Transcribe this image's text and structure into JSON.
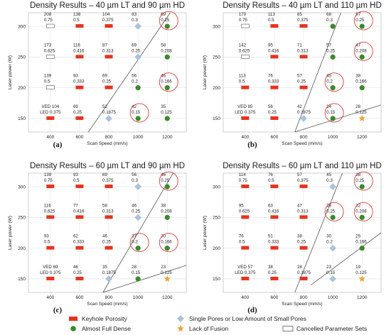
{
  "figure_id": "",
  "legend": [
    {
      "key": "keyhole",
      "label": "Keyhole Porosity",
      "color": "#e8321e"
    },
    {
      "key": "dense",
      "label": "Almost Full Dense",
      "color": "#3a8a2a"
    },
    {
      "key": "single",
      "label": "Single Pores or Low Amount of Small Pores",
      "color": "#a9c4e0"
    },
    {
      "key": "fusion",
      "label": "Lack of Fusion",
      "color": "#f0a030"
    },
    {
      "key": "cancelled",
      "label": "Cancelled Parameter Sets",
      "color": "#ffffff"
    }
  ],
  "chart_data": [
    {
      "type": "scatter",
      "tag": "(a)",
      "title": "Density Results – 40 µm LT and 90 µm HD",
      "xlabel": "Scan Speed (mm/s)",
      "ylabel": "Laser power (W)",
      "x_ticks": [
        400,
        600,
        800,
        1000,
        1200
      ],
      "y_ticks": [
        150,
        200,
        250,
        300
      ],
      "xlim": [
        250,
        1330
      ],
      "ylim": [
        128,
        322
      ],
      "key_note": {
        "line1": "VED",
        "line2": "LED"
      },
      "points": [
        {
          "x": 400,
          "y": 300,
          "ved": "208",
          "led": "0.75",
          "cls": "cancelled"
        },
        {
          "x": 600,
          "y": 300,
          "ved": "138",
          "led": "0.5",
          "cls": "keyhole"
        },
        {
          "x": 800,
          "y": 300,
          "ved": "104",
          "led": "0.375",
          "cls": "keyhole"
        },
        {
          "x": 1000,
          "y": 300,
          "ved": "83",
          "led": "0.3",
          "cls": "single"
        },
        {
          "x": 1200,
          "y": 300,
          "ved": "69",
          "led": "0.25",
          "cls": "dense",
          "circle": true
        },
        {
          "x": 400,
          "y": 250,
          "ved": "173",
          "led": "0.625",
          "cls": "cancelled"
        },
        {
          "x": 600,
          "y": 250,
          "ved": "116",
          "led": "0.416",
          "cls": "keyhole"
        },
        {
          "x": 800,
          "y": 250,
          "ved": "87",
          "led": "0.313",
          "cls": "keyhole"
        },
        {
          "x": 1000,
          "y": 250,
          "ved": "69",
          "led": "0.25",
          "cls": "single"
        },
        {
          "x": 1200,
          "y": 250,
          "ved": "58",
          "led": "0.208",
          "cls": "dense"
        },
        {
          "x": 400,
          "y": 200,
          "ved": "139",
          "led": "0.5",
          "cls": "cancelled"
        },
        {
          "x": 600,
          "y": 200,
          "ved": "93",
          "led": "0.333",
          "cls": "keyhole"
        },
        {
          "x": 800,
          "y": 200,
          "ved": "69",
          "led": "0.25",
          "cls": "keyhole"
        },
        {
          "x": 1000,
          "y": 200,
          "ved": "56",
          "led": "0.2",
          "cls": "dense"
        },
        {
          "x": 1200,
          "y": 200,
          "ved": "46",
          "led": "0.166",
          "cls": "dense",
          "circle": true
        },
        {
          "x": 400,
          "y": 150,
          "ved": "104",
          "led": "0.375",
          "cls": "keyhole",
          "key": true
        },
        {
          "x": 600,
          "y": 150,
          "ved": "69",
          "led": "0.25",
          "cls": "keyhole"
        },
        {
          "x": 800,
          "y": 150,
          "ved": "52",
          "led": "0.1875",
          "cls": "single"
        },
        {
          "x": 1000,
          "y": 150,
          "ved": "42",
          "led": "0.15",
          "cls": "dense",
          "circle": true
        },
        {
          "x": 1200,
          "y": 150,
          "ved": "35",
          "led": "0.125",
          "cls": "dense"
        }
      ],
      "lines": [
        {
          "x1": 660,
          "y1": 128,
          "x2": 1220,
          "y2": 322
        }
      ]
    },
    {
      "type": "scatter",
      "tag": "(b)",
      "title": "Density Results – 40 µm LT and 110 µm HD",
      "xlabel": "Scan Speed (mm/s)",
      "ylabel": "Laser power (W)",
      "x_ticks": [
        400,
        600,
        800,
        1000,
        1200
      ],
      "y_ticks": [
        150,
        200,
        250,
        300
      ],
      "xlim": [
        250,
        1330
      ],
      "ylim": [
        128,
        322
      ],
      "key_note": {
        "line1": "VED",
        "line2": "LED"
      },
      "points": [
        {
          "x": 400,
          "y": 300,
          "ved": "170",
          "led": "0.75",
          "cls": "cancelled"
        },
        {
          "x": 600,
          "y": 300,
          "ved": "113",
          "led": "0.5",
          "cls": "keyhole"
        },
        {
          "x": 800,
          "y": 300,
          "ved": "85",
          "led": "0.375",
          "cls": "keyhole"
        },
        {
          "x": 1000,
          "y": 300,
          "ved": "68",
          "led": "0.3",
          "cls": "dense"
        },
        {
          "x": 1200,
          "y": 300,
          "ved": "57",
          "led": "0.25",
          "cls": "dense",
          "circle": true
        },
        {
          "x": 400,
          "y": 250,
          "ved": "142",
          "led": "0.625",
          "cls": "cancelled"
        },
        {
          "x": 600,
          "y": 250,
          "ved": "95",
          "led": "0.416",
          "cls": "keyhole"
        },
        {
          "x": 800,
          "y": 250,
          "ved": "71",
          "led": "0.313",
          "cls": "keyhole"
        },
        {
          "x": 1000,
          "y": 250,
          "ved": "57",
          "led": "0.25",
          "cls": "dense"
        },
        {
          "x": 1200,
          "y": 250,
          "ved": "47",
          "led": "0.208",
          "cls": "dense",
          "circle": true
        },
        {
          "x": 400,
          "y": 200,
          "ved": "113",
          "led": "0.5",
          "cls": "keyhole"
        },
        {
          "x": 600,
          "y": 200,
          "ved": "76",
          "led": "0.333",
          "cls": "keyhole"
        },
        {
          "x": 800,
          "y": 200,
          "ved": "57",
          "led": "0.25",
          "cls": "keyhole"
        },
        {
          "x": 1000,
          "y": 200,
          "ved": "45",
          "led": "0.2",
          "cls": "dense",
          "circle": true
        },
        {
          "x": 1200,
          "y": 200,
          "ved": "38",
          "led": "0.166",
          "cls": "dense"
        },
        {
          "x": 400,
          "y": 150,
          "ved": "85",
          "led": "0.375",
          "cls": "keyhole",
          "key": true
        },
        {
          "x": 600,
          "y": 150,
          "ved": "56",
          "led": "0.25",
          "cls": "keyhole"
        },
        {
          "x": 800,
          "y": 150,
          "ved": "42",
          "led": "0.1875",
          "cls": "single"
        },
        {
          "x": 1000,
          "y": 150,
          "ved": "34",
          "led": "0.15",
          "cls": "dense",
          "circle": true
        },
        {
          "x": 1200,
          "y": 150,
          "ved": "28",
          "led": "0.125",
          "cls": "fusion"
        }
      ],
      "lines": [
        {
          "x1": 740,
          "y1": 128,
          "x2": 1055,
          "y2": 322
        },
        {
          "x1": 740,
          "y1": 128,
          "x2": 1330,
          "y2": 172
        }
      ]
    },
    {
      "type": "scatter",
      "tag": "(c)",
      "title": "Density Results – 60 µm LT and 90 µm HD",
      "xlabel": "Scan Speed (mm/s)",
      "ylabel": "Laser power (W)",
      "x_ticks": [
        400,
        600,
        800,
        1000,
        1200
      ],
      "y_ticks": [
        150,
        200,
        250,
        300
      ],
      "xlim": [
        250,
        1330
      ],
      "ylim": [
        128,
        322
      ],
      "key_note": {
        "line1": "VED",
        "line2": "LED"
      },
      "points": [
        {
          "x": 400,
          "y": 300,
          "ved": "139",
          "led": "0.75",
          "cls": "keyhole"
        },
        {
          "x": 600,
          "y": 300,
          "ved": "93",
          "led": "0.5",
          "cls": "keyhole"
        },
        {
          "x": 800,
          "y": 300,
          "ved": "69",
          "led": "0.375",
          "cls": "keyhole"
        },
        {
          "x": 1000,
          "y": 300,
          "ved": "56",
          "led": "0.3",
          "cls": "single"
        },
        {
          "x": 1200,
          "y": 300,
          "ved": "46",
          "led": "0.25",
          "cls": "dense",
          "circle": true
        },
        {
          "x": 400,
          "y": 250,
          "ved": "116",
          "led": "0.625",
          "cls": "keyhole"
        },
        {
          "x": 600,
          "y": 250,
          "ved": "77",
          "led": "0.416",
          "cls": "keyhole"
        },
        {
          "x": 800,
          "y": 250,
          "ved": "58",
          "led": "0.313",
          "cls": "keyhole"
        },
        {
          "x": 1000,
          "y": 250,
          "ved": "46",
          "led": "0.25",
          "cls": "single"
        },
        {
          "x": 1200,
          "y": 250,
          "ved": "38",
          "led": "0.208",
          "cls": "dense"
        },
        {
          "x": 400,
          "y": 200,
          "ved": "93",
          "led": "0.5",
          "cls": "keyhole"
        },
        {
          "x": 600,
          "y": 200,
          "ved": "62",
          "led": "0.333",
          "cls": "keyhole"
        },
        {
          "x": 800,
          "y": 200,
          "ved": "46",
          "led": "0.25",
          "cls": "keyhole"
        },
        {
          "x": 1000,
          "y": 200,
          "ved": "37",
          "led": "0.2",
          "cls": "dense",
          "circle": true
        },
        {
          "x": 1200,
          "y": 200,
          "ved": "30",
          "led": "0.166",
          "cls": "dense",
          "circle": true
        },
        {
          "x": 400,
          "y": 150,
          "ved": "69",
          "led": "0.375",
          "cls": "keyhole",
          "key": true
        },
        {
          "x": 600,
          "y": 150,
          "ved": "46",
          "led": "0.25",
          "cls": "keyhole"
        },
        {
          "x": 800,
          "y": 150,
          "ved": "35",
          "led": "0.1875",
          "cls": "single"
        },
        {
          "x": 1000,
          "y": 150,
          "ved": "28",
          "led": "0.15",
          "cls": "dense"
        },
        {
          "x": 1200,
          "y": 150,
          "ved": "23",
          "led": "0.125",
          "cls": "fusion"
        }
      ],
      "lines": [
        {
          "x1": 760,
          "y1": 128,
          "x2": 1240,
          "y2": 322
        },
        {
          "x1": 760,
          "y1": 128,
          "x2": 1330,
          "y2": 172
        }
      ]
    },
    {
      "type": "scatter",
      "tag": "(d)",
      "title": "Density Results – 60 µm LT and 110 µm HD",
      "xlabel": "Scan Speed (mm/s)",
      "ylabel": "Laser power (W)",
      "x_ticks": [
        400,
        600,
        800,
        1000,
        1200
      ],
      "y_ticks": [
        150,
        200,
        250,
        300
      ],
      "xlim": [
        250,
        1330
      ],
      "ylim": [
        128,
        322
      ],
      "key_note": {
        "line1": "VED",
        "line2": "LED"
      },
      "points": [
        {
          "x": 400,
          "y": 300,
          "ved": "114",
          "led": "0.75",
          "cls": "keyhole"
        },
        {
          "x": 600,
          "y": 300,
          "ved": "76",
          "led": "0.5",
          "cls": "keyhole"
        },
        {
          "x": 800,
          "y": 300,
          "ved": "57",
          "led": "0.375",
          "cls": "keyhole"
        },
        {
          "x": 1000,
          "y": 300,
          "ved": "45",
          "led": "0.3",
          "cls": "single"
        },
        {
          "x": 1200,
          "y": 300,
          "ved": "38",
          "led": "0.25",
          "cls": "dense",
          "circle": true
        },
        {
          "x": 400,
          "y": 250,
          "ved": "95",
          "led": "0.625",
          "cls": "keyhole"
        },
        {
          "x": 600,
          "y": 250,
          "ved": "63",
          "led": "0.416",
          "cls": "keyhole"
        },
        {
          "x": 800,
          "y": 250,
          "ved": "47",
          "led": "0.313",
          "cls": "keyhole"
        },
        {
          "x": 1000,
          "y": 250,
          "ved": "38",
          "led": "0.25",
          "cls": "dense",
          "circle": true
        },
        {
          "x": 1200,
          "y": 250,
          "ved": "32",
          "led": "0.208",
          "cls": "dense",
          "circle": true
        },
        {
          "x": 400,
          "y": 200,
          "ved": "76",
          "led": "0.5",
          "cls": "keyhole"
        },
        {
          "x": 600,
          "y": 200,
          "ved": "51",
          "led": "0.333",
          "cls": "keyhole"
        },
        {
          "x": 800,
          "y": 200,
          "ved": "38",
          "led": "0.25",
          "cls": "keyhole"
        },
        {
          "x": 1000,
          "y": 200,
          "ved": "30",
          "led": "0.2",
          "cls": "single"
        },
        {
          "x": 1200,
          "y": 200,
          "ved": "25",
          "led": "0.166",
          "cls": "dense"
        },
        {
          "x": 400,
          "y": 150,
          "ved": "57",
          "led": "0.375",
          "cls": "keyhole",
          "key": true
        },
        {
          "x": 600,
          "y": 150,
          "ved": "38",
          "led": "0.25",
          "cls": "keyhole"
        },
        {
          "x": 800,
          "y": 150,
          "ved": "28",
          "led": "0.1875",
          "cls": "keyhole"
        },
        {
          "x": 1000,
          "y": 150,
          "ved": "23",
          "led": "0.15",
          "cls": "single"
        },
        {
          "x": 1200,
          "y": 150,
          "ved": "19",
          "led": "0.125",
          "cls": "fusion"
        }
      ],
      "lines": [
        {
          "x1": 740,
          "y1": 128,
          "x2": 1065,
          "y2": 322
        },
        {
          "x1": 850,
          "y1": 140,
          "x2": 1330,
          "y2": 225
        }
      ]
    }
  ]
}
